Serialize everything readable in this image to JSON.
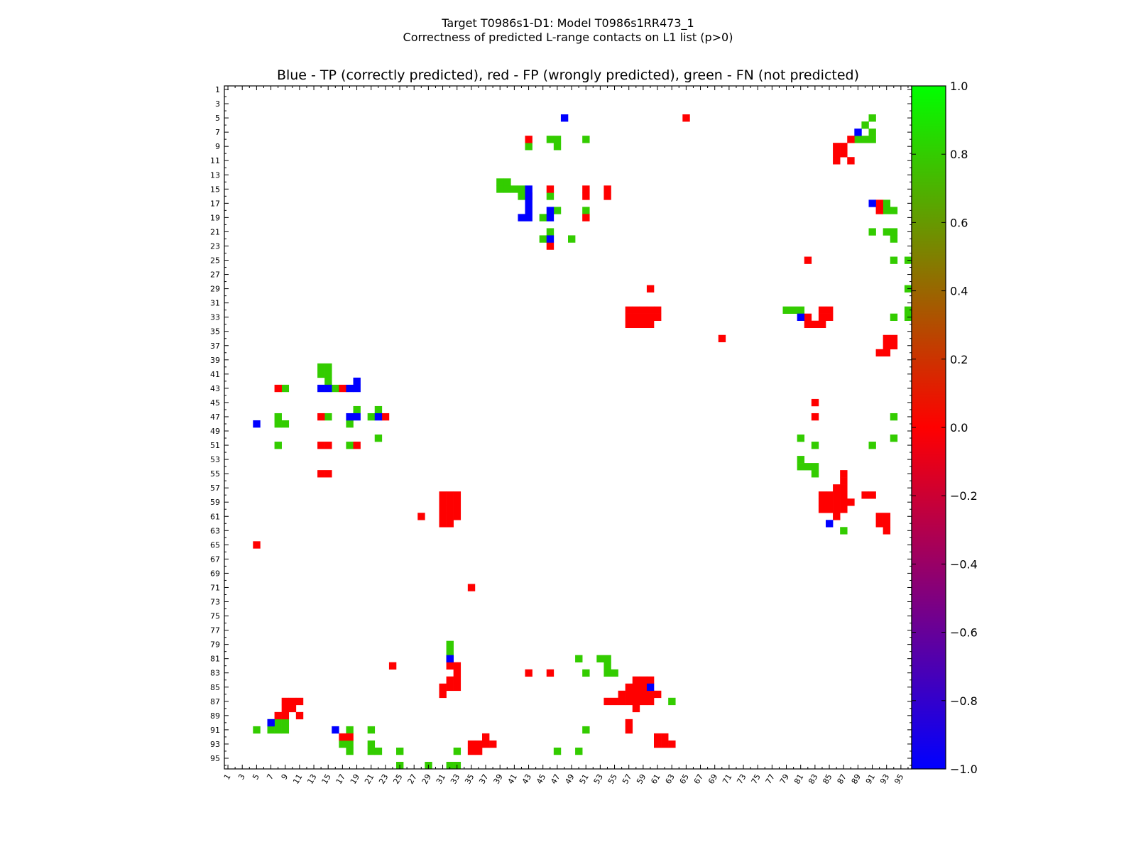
{
  "figure": {
    "title_line1": "Target T0986s1-D1: Model T0986s1RR473_1",
    "title_line2": "Correctness of predicted L-range contacts on L1 list (p>0)",
    "axes_title": "Blue - TP (correctly predicted), red - FP (wrongly predicted), green - FN (not predicted)"
  },
  "colors": {
    "tp": "#0000ff",
    "fp": "#ff0000",
    "fn": "#33cc00"
  },
  "chart_data": {
    "type": "heatmap",
    "title": "Blue - TP (correctly predicted), red - FP (wrongly predicted), green - FN (not predicted)",
    "xlim": [
      1,
      96
    ],
    "ylim": [
      1,
      96
    ],
    "y_inverted": true,
    "x_ticks": [
      1,
      3,
      5,
      7,
      9,
      11,
      13,
      15,
      17,
      19,
      21,
      23,
      25,
      27,
      29,
      31,
      33,
      35,
      37,
      39,
      41,
      43,
      45,
      47,
      49,
      51,
      53,
      55,
      57,
      59,
      61,
      63,
      65,
      67,
      69,
      71,
      73,
      75,
      77,
      79,
      81,
      83,
      85,
      87,
      89,
      91,
      93,
      95
    ],
    "y_ticks": [
      1,
      3,
      5,
      7,
      9,
      11,
      13,
      15,
      17,
      19,
      21,
      23,
      25,
      27,
      29,
      31,
      33,
      35,
      37,
      39,
      41,
      43,
      45,
      47,
      49,
      51,
      53,
      55,
      57,
      59,
      61,
      63,
      65,
      67,
      69,
      71,
      73,
      75,
      77,
      79,
      81,
      83,
      85,
      87,
      89,
      91,
      93,
      95
    ],
    "colorbar": {
      "range": [
        -1.0,
        1.0
      ],
      "ticks": [
        "1.0",
        "0.8",
        "0.6",
        "0.4",
        "0.2",
        "0.0",
        "−0.2",
        "−0.4",
        "−0.6",
        "−0.8",
        "−1.0"
      ],
      "tick_values": [
        1.0,
        0.8,
        0.6,
        0.4,
        0.2,
        0.0,
        -0.2,
        -0.4,
        -0.6,
        -0.8,
        -1.0
      ],
      "gradient": [
        "#0000ff",
        "#ff0000",
        "#00ff00"
      ]
    },
    "cells": {
      "tp": [
        [
          48,
          5
        ],
        [
          89,
          7
        ],
        [
          43,
          15
        ],
        [
          43,
          16
        ],
        [
          43,
          17
        ],
        [
          43,
          18
        ],
        [
          46,
          18
        ],
        [
          42,
          19
        ],
        [
          43,
          19
        ],
        [
          46,
          19
        ],
        [
          46,
          22
        ],
        [
          91,
          17
        ],
        [
          14,
          43
        ],
        [
          15,
          43
        ],
        [
          18,
          43
        ],
        [
          19,
          43
        ],
        [
          19,
          42
        ],
        [
          18,
          47
        ],
        [
          19,
          47
        ],
        [
          22,
          47
        ],
        [
          5,
          48
        ],
        [
          32,
          81
        ],
        [
          60,
          85
        ],
        [
          7,
          90
        ],
        [
          16,
          91
        ],
        [
          81,
          33
        ],
        [
          85,
          62
        ]
      ],
      "fp": [
        [
          65,
          5
        ],
        [
          43,
          8
        ],
        [
          88,
          8
        ],
        [
          86,
          9
        ],
        [
          87,
          9
        ],
        [
          86,
          10
        ],
        [
          87,
          10
        ],
        [
          86,
          11
        ],
        [
          88,
          11
        ],
        [
          43,
          16
        ],
        [
          46,
          15
        ],
        [
          51,
          15
        ],
        [
          51,
          16
        ],
        [
          54,
          15
        ],
        [
          54,
          16
        ],
        [
          92,
          17
        ],
        [
          92,
          18
        ],
        [
          51,
          19
        ],
        [
          46,
          23
        ],
        [
          82,
          25
        ],
        [
          60,
          29
        ],
        [
          57,
          32
        ],
        [
          58,
          32
        ],
        [
          59,
          32
        ],
        [
          60,
          32
        ],
        [
          61,
          32
        ],
        [
          57,
          33
        ],
        [
          58,
          33
        ],
        [
          59,
          33
        ],
        [
          60,
          33
        ],
        [
          61,
          33
        ],
        [
          57,
          34
        ],
        [
          58,
          34
        ],
        [
          59,
          34
        ],
        [
          60,
          34
        ],
        [
          84,
          32
        ],
        [
          85,
          32
        ],
        [
          82,
          33
        ],
        [
          84,
          33
        ],
        [
          85,
          33
        ],
        [
          82,
          34
        ],
        [
          83,
          34
        ],
        [
          84,
          34
        ],
        [
          70,
          36
        ],
        [
          93,
          36
        ],
        [
          94,
          36
        ],
        [
          93,
          37
        ],
        [
          94,
          37
        ],
        [
          92,
          38
        ],
        [
          93,
          38
        ],
        [
          8,
          43
        ],
        [
          17,
          43
        ],
        [
          83,
          45
        ],
        [
          14,
          47
        ],
        [
          23,
          47
        ],
        [
          83,
          47
        ],
        [
          14,
          51
        ],
        [
          15,
          51
        ],
        [
          19,
          51
        ],
        [
          14,
          55
        ],
        [
          15,
          55
        ],
        [
          87,
          55
        ],
        [
          87,
          56
        ],
        [
          86,
          57
        ],
        [
          87,
          57
        ],
        [
          31,
          58
        ],
        [
          32,
          58
        ],
        [
          33,
          58
        ],
        [
          84,
          58
        ],
        [
          85,
          58
        ],
        [
          86,
          58
        ],
        [
          87,
          58
        ],
        [
          90,
          58
        ],
        [
          91,
          58
        ],
        [
          31,
          59
        ],
        [
          32,
          59
        ],
        [
          33,
          59
        ],
        [
          84,
          59
        ],
        [
          85,
          59
        ],
        [
          86,
          59
        ],
        [
          87,
          59
        ],
        [
          88,
          59
        ],
        [
          31,
          60
        ],
        [
          32,
          60
        ],
        [
          33,
          60
        ],
        [
          84,
          60
        ],
        [
          85,
          60
        ],
        [
          86,
          60
        ],
        [
          87,
          60
        ],
        [
          28,
          61
        ],
        [
          31,
          61
        ],
        [
          32,
          61
        ],
        [
          33,
          61
        ],
        [
          86,
          61
        ],
        [
          92,
          61
        ],
        [
          93,
          61
        ],
        [
          31,
          62
        ],
        [
          32,
          62
        ],
        [
          92,
          62
        ],
        [
          93,
          62
        ],
        [
          93,
          63
        ],
        [
          5,
          65
        ],
        [
          35,
          71
        ],
        [
          24,
          82
        ],
        [
          32,
          82
        ],
        [
          33,
          82
        ],
        [
          43,
          83
        ],
        [
          46,
          83
        ],
        [
          33,
          83
        ],
        [
          32,
          84
        ],
        [
          33,
          84
        ],
        [
          58,
          84
        ],
        [
          59,
          84
        ],
        [
          60,
          84
        ],
        [
          31,
          85
        ],
        [
          32,
          85
        ],
        [
          33,
          85
        ],
        [
          57,
          85
        ],
        [
          58,
          85
        ],
        [
          59,
          85
        ],
        [
          31,
          86
        ],
        [
          56,
          86
        ],
        [
          57,
          86
        ],
        [
          58,
          86
        ],
        [
          59,
          86
        ],
        [
          60,
          86
        ],
        [
          61,
          86
        ],
        [
          9,
          87
        ],
        [
          10,
          87
        ],
        [
          11,
          87
        ],
        [
          54,
          87
        ],
        [
          55,
          87
        ],
        [
          56,
          87
        ],
        [
          57,
          87
        ],
        [
          58,
          87
        ],
        [
          59,
          87
        ],
        [
          60,
          87
        ],
        [
          9,
          88
        ],
        [
          10,
          88
        ],
        [
          58,
          88
        ],
        [
          8,
          89
        ],
        [
          9,
          89
        ],
        [
          11,
          89
        ],
        [
          57,
          90
        ],
        [
          57,
          91
        ],
        [
          17,
          92
        ],
        [
          18,
          92
        ],
        [
          61,
          92
        ],
        [
          62,
          92
        ],
        [
          61,
          93
        ],
        [
          62,
          93
        ],
        [
          63,
          93
        ],
        [
          37,
          92
        ],
        [
          36,
          93
        ],
        [
          37,
          93
        ],
        [
          38,
          93
        ],
        [
          35,
          93
        ],
        [
          35,
          94
        ],
        [
          36,
          94
        ]
      ],
      "fn": [
        [
          91,
          5
        ],
        [
          90,
          6
        ],
        [
          91,
          7
        ],
        [
          89,
          8
        ],
        [
          90,
          8
        ],
        [
          91,
          8
        ],
        [
          46,
          8
        ],
        [
          47,
          8
        ],
        [
          51,
          8
        ],
        [
          43,
          9
        ],
        [
          47,
          9
        ],
        [
          39,
          14
        ],
        [
          40,
          14
        ],
        [
          39,
          15
        ],
        [
          40,
          15
        ],
        [
          41,
          15
        ],
        [
          42,
          15
        ],
        [
          42,
          16
        ],
        [
          46,
          16
        ],
        [
          93,
          17
        ],
        [
          93,
          18
        ],
        [
          94,
          18
        ],
        [
          47,
          18
        ],
        [
          51,
          18
        ],
        [
          45,
          19
        ],
        [
          91,
          21
        ],
        [
          93,
          21
        ],
        [
          94,
          21
        ],
        [
          46,
          21
        ],
        [
          94,
          22
        ],
        [
          45,
          22
        ],
        [
          49,
          22
        ],
        [
          94,
          25
        ],
        [
          96,
          25
        ],
        [
          96,
          29
        ],
        [
          79,
          32
        ],
        [
          80,
          32
        ],
        [
          81,
          32
        ],
        [
          96,
          32
        ],
        [
          96,
          33
        ],
        [
          94,
          33
        ],
        [
          14,
          40
        ],
        [
          15,
          40
        ],
        [
          14,
          41
        ],
        [
          15,
          41
        ],
        [
          15,
          42
        ],
        [
          16,
          43
        ],
        [
          9,
          43
        ],
        [
          19,
          46
        ],
        [
          22,
          46
        ],
        [
          8,
          47
        ],
        [
          15,
          47
        ],
        [
          21,
          47
        ],
        [
          94,
          47
        ],
        [
          8,
          48
        ],
        [
          9,
          48
        ],
        [
          18,
          48
        ],
        [
          22,
          50
        ],
        [
          81,
          50
        ],
        [
          94,
          50
        ],
        [
          8,
          51
        ],
        [
          18,
          51
        ],
        [
          83,
          51
        ],
        [
          91,
          51
        ],
        [
          81,
          53
        ],
        [
          81,
          54
        ],
        [
          82,
          54
        ],
        [
          83,
          54
        ],
        [
          83,
          55
        ],
        [
          87,
          63
        ],
        [
          32,
          79
        ],
        [
          32,
          80
        ],
        [
          32,
          81
        ],
        [
          50,
          81
        ],
        [
          53,
          81
        ],
        [
          54,
          81
        ],
        [
          51,
          83
        ],
        [
          54,
          82
        ],
        [
          54,
          83
        ],
        [
          55,
          83
        ],
        [
          63,
          87
        ],
        [
          7,
          90
        ],
        [
          8,
          90
        ],
        [
          9,
          90
        ],
        [
          5,
          91
        ],
        [
          7,
          91
        ],
        [
          8,
          91
        ],
        [
          9,
          91
        ],
        [
          18,
          91
        ],
        [
          21,
          91
        ],
        [
          51,
          91
        ],
        [
          17,
          93
        ],
        [
          18,
          93
        ],
        [
          21,
          93
        ],
        [
          18,
          94
        ],
        [
          21,
          94
        ],
        [
          22,
          94
        ],
        [
          25,
          94
        ],
        [
          33,
          94
        ],
        [
          47,
          94
        ],
        [
          50,
          94
        ],
        [
          25,
          96
        ],
        [
          29,
          96
        ],
        [
          32,
          96
        ],
        [
          33,
          96
        ]
      ]
    }
  }
}
